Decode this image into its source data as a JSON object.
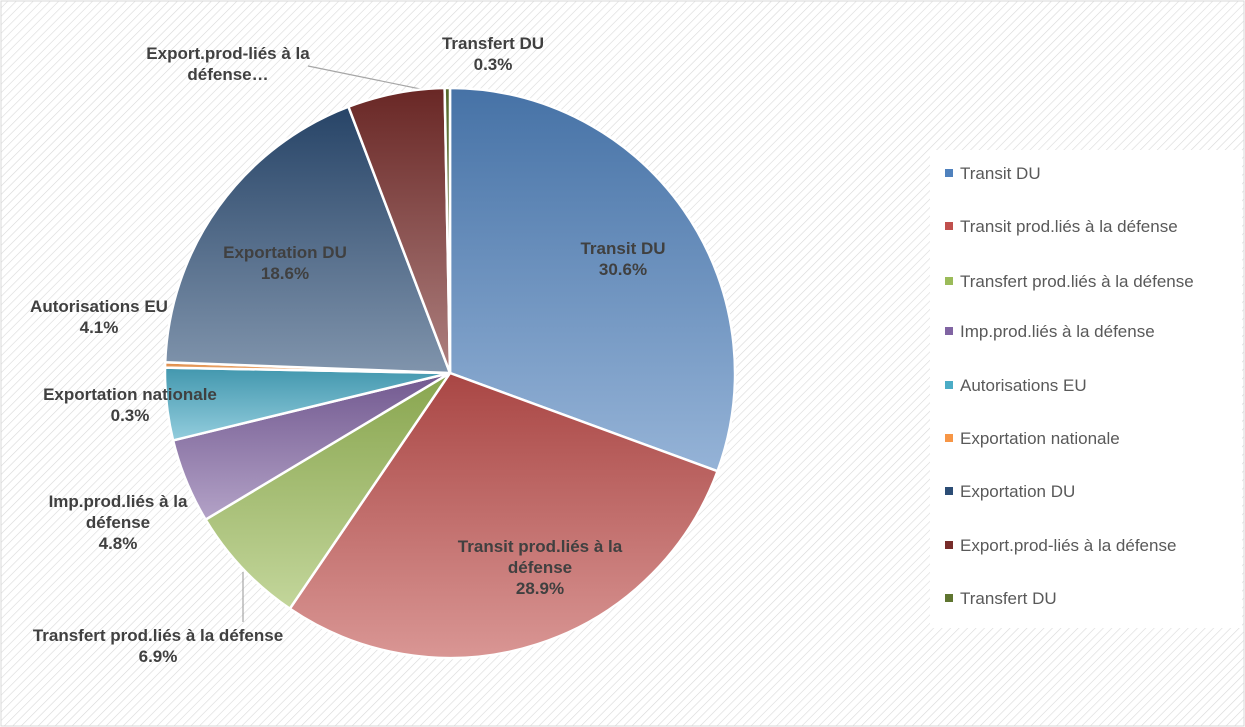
{
  "chart_data": {
    "type": "pie",
    "categories": [
      "Transit DU",
      "Transit prod.liés à la défense",
      "Transfert prod.liés à la défense",
      "Imp.prod.liés à la défense",
      "Autorisations EU",
      "Exportation nationale",
      "Exportation DU",
      "Export.prod-liés à la défense",
      "Transfert DU"
    ],
    "values": [
      30.6,
      28.9,
      6.9,
      4.8,
      4.1,
      0.3,
      18.6,
      5.5,
      0.3
    ],
    "value_labels": [
      "30.6%",
      "28.9%",
      "6.9%",
      "4.8%",
      "4.1%",
      "0.3%",
      "18.6%",
      null,
      "0.3%"
    ],
    "label_names": [
      "Transit DU",
      "Transit prod.liés à la défense",
      "Transfert prod.liés à la défense",
      "Imp.prod.liés à la défense",
      "Autorisations EU",
      "Exportation nationale",
      "Exportation DU",
      "Export.prod-liés à la défense…",
      "Transfert DU"
    ],
    "colors": [
      "#4f81bd",
      "#c0504d",
      "#9bbb59",
      "#8064a2",
      "#4bacc6",
      "#f79646",
      "#2c4d75",
      "#772c2a",
      "#5f7530"
    ],
    "legend": "right"
  }
}
